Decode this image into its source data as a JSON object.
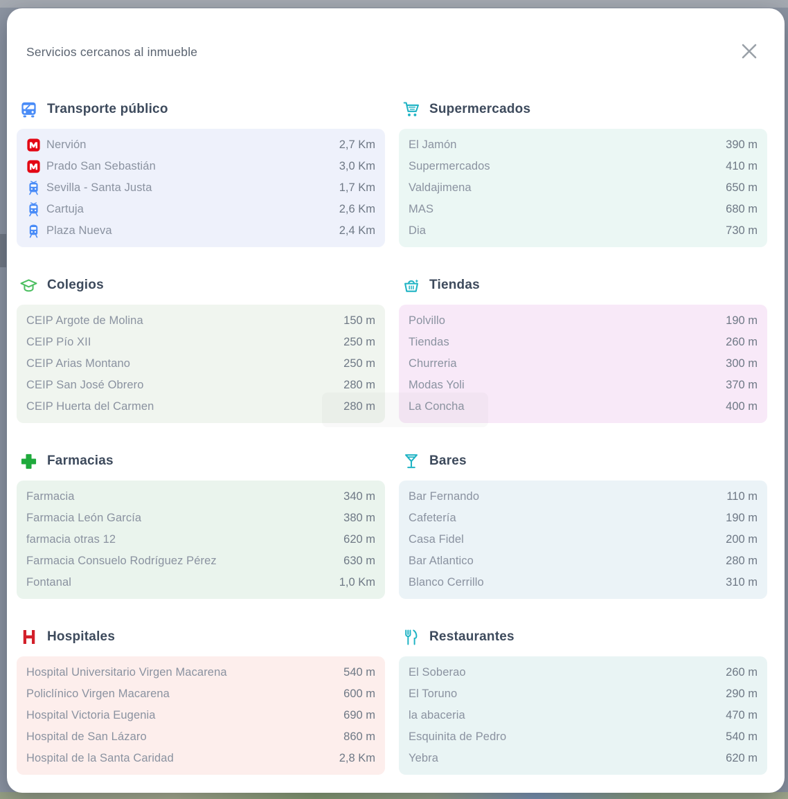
{
  "modal": {
    "title": "Servicios cercanos al inmueble"
  },
  "colors": {
    "transport_blue": "#4a8cf7",
    "teal": "#1fb3c4",
    "school_green": "#4cbf61",
    "pharmacy_green": "#1faa3c",
    "metro_red": "#e30613",
    "hospital_red": "#d3202a",
    "close_gray": "#9aa1a8"
  },
  "sections": [
    {
      "id": "transporte-publico",
      "title": "Transporte público",
      "icon": "bus-icon",
      "icon_color": "#4a8cf7",
      "box_bg": "#eef1fb",
      "items": [
        {
          "icon": "metro-icon",
          "name": "Nervión",
          "distance": "2,7 Km"
        },
        {
          "icon": "metro-icon",
          "name": "Prado San Sebastián",
          "distance": "3,0 Km"
        },
        {
          "icon": "train-icon",
          "name": "Sevilla - Santa Justa",
          "distance": "1,7 Km"
        },
        {
          "icon": "train-icon",
          "name": "Cartuja",
          "distance": "2,6 Km"
        },
        {
          "icon": "tram-icon",
          "name": "Plaza Nueva",
          "distance": "2,4 Km"
        }
      ]
    },
    {
      "id": "supermercados",
      "title": "Supermercados",
      "icon": "shopping-cart-icon",
      "icon_color": "#1fb3c4",
      "box_bg": "#ebf7f4",
      "items": [
        {
          "name": "El Jamón",
          "distance": "390 m"
        },
        {
          "name": "Supermercados",
          "distance": "410 m"
        },
        {
          "name": "Valdajimena",
          "distance": "650 m"
        },
        {
          "name": "MAS",
          "distance": "680 m"
        },
        {
          "name": "Dia",
          "distance": "730 m"
        }
      ]
    },
    {
      "id": "colegios",
      "title": "Colegios",
      "icon": "graduation-cap-icon",
      "icon_color": "#4cbf61",
      "box_bg": "#f0f5ef",
      "items": [
        {
          "name": "CEIP Argote de Molina",
          "distance": "150 m"
        },
        {
          "name": "CEIP Pío XII",
          "distance": "250 m"
        },
        {
          "name": "CEIP Arias Montano",
          "distance": "250 m"
        },
        {
          "name": "CEIP San José Obrero",
          "distance": "280 m"
        },
        {
          "name": "CEIP Huerta del Carmen",
          "distance": "280 m"
        }
      ]
    },
    {
      "id": "tiendas",
      "title": "Tiendas",
      "icon": "shopping-basket-icon",
      "icon_color": "#1fb3c4",
      "box_bg": "#f8e9f8",
      "items": [
        {
          "name": "Polvillo",
          "distance": "190 m"
        },
        {
          "name": "Tiendas",
          "distance": "260 m"
        },
        {
          "name": "Churreria",
          "distance": "300 m"
        },
        {
          "name": "Modas Yoli",
          "distance": "370 m"
        },
        {
          "name": "La Concha",
          "distance": "400 m"
        }
      ]
    },
    {
      "id": "farmacias",
      "title": "Farmacias",
      "icon": "pharmacy-cross-icon",
      "icon_color": "#1faa3c",
      "box_bg": "#eaf4ed",
      "items": [
        {
          "name": "Farmacia",
          "distance": "340 m"
        },
        {
          "name": "Farmacia León García",
          "distance": "380 m"
        },
        {
          "name": "farmacia otras 12",
          "distance": "620 m"
        },
        {
          "name": "Farmacia Consuelo Rodríguez Pérez",
          "distance": "630 m"
        },
        {
          "name": "Fontanal",
          "distance": "1,0 Km"
        }
      ]
    },
    {
      "id": "bares",
      "title": "Bares",
      "icon": "cocktail-icon",
      "icon_color": "#1fb3c4",
      "box_bg": "#ebf3f7",
      "items": [
        {
          "name": "Bar Fernando",
          "distance": "110 m"
        },
        {
          "name": "Cafetería",
          "distance": "190 m"
        },
        {
          "name": "Casa Fidel",
          "distance": "200 m"
        },
        {
          "name": "Bar Atlantico",
          "distance": "280 m"
        },
        {
          "name": "Blanco Cerrillo",
          "distance": "310 m"
        }
      ]
    },
    {
      "id": "hospitales",
      "title": "Hospitales",
      "icon": "hospital-icon",
      "icon_color": "#d3202a",
      "box_bg": "#fdeeec",
      "items": [
        {
          "name": "Hospital Universitario Virgen Macarena",
          "distance": "540 m"
        },
        {
          "name": "Policlínico Virgen Macarena",
          "distance": "600 m"
        },
        {
          "name": "Hospital Victoria Eugenia",
          "distance": "690 m"
        },
        {
          "name": "Hospital de San Lázaro",
          "distance": "860 m"
        },
        {
          "name": "Hospital de la Santa Caridad",
          "distance": "2,8 Km"
        }
      ]
    },
    {
      "id": "restaurantes",
      "title": "Restaurantes",
      "icon": "restaurant-icon",
      "icon_color": "#1fb3c4",
      "box_bg": "#e9f4f4",
      "items": [
        {
          "name": "El Soberao",
          "distance": "260 m"
        },
        {
          "name": "El Toruno",
          "distance": "290 m"
        },
        {
          "name": "la abaceria",
          "distance": "470 m"
        },
        {
          "name": "Esquinita de Pedro",
          "distance": "540 m"
        },
        {
          "name": "Yebra",
          "distance": "620 m"
        }
      ]
    }
  ]
}
